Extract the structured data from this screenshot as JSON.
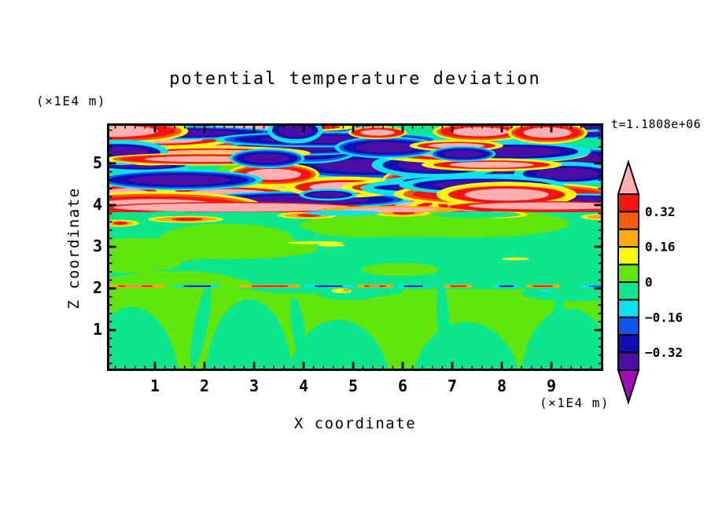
{
  "chart_data": {
    "type": "heatmap",
    "subtype": "filled-contour",
    "title": "potential temperature deviation",
    "xlabel": "X coordinate",
    "ylabel": "Z coordinate",
    "x_unit_label": "(×1E4 m)",
    "y_unit_label": "(×1E4 m)",
    "time_label": "t=1.1808e+06",
    "xlim": [
      0,
      10
    ],
    "zlim": [
      0,
      5.95
    ],
    "x_major_ticks": [
      1,
      2,
      3,
      4,
      5,
      6,
      7,
      8,
      9
    ],
    "z_major_ticks": [
      1,
      2,
      3,
      4,
      5
    ],
    "minor_tick_step": 0.2,
    "grid": false,
    "colorbar": {
      "labels": [
        "0.32",
        "0.16",
        "0",
        "−0.16",
        "−0.32"
      ],
      "level_boundaries": [
        0.4,
        0.32,
        0.24,
        0.16,
        0.08,
        0,
        -0.08,
        -0.16,
        -0.24,
        -0.32,
        -0.4
      ],
      "cell_colors_top_to_bottom": [
        "#FB1310",
        "#F85C0B",
        "#FCA90A",
        "#FEFB06",
        "#60E60D",
        "#0BE78E",
        "#0CE2EF",
        "#0D55F2",
        "#140EB2",
        "#4A0EA6"
      ],
      "over_color": "#FFAFB0",
      "under_color": "#9E10B5",
      "position": "right"
    },
    "palette": {
      "pink": "#FFAFB0",
      "red": "#FB1310",
      "orangered": "#F85C0B",
      "orange": "#FCA90A",
      "yellow": "#FEFB06",
      "chartreuse": "#60E60D",
      "spring": "#0BE78E",
      "cyan": "#0CE2EF",
      "blue": "#0D55F2",
      "navy": "#140EB2",
      "violet": "#4A0EA6",
      "purple": "#9E10B5"
    },
    "features": {
      "upper_turbulent_layer": {
        "z_range": [
          3.85,
          5.95
        ],
        "description": "chaotic elongated horizontal streaks alternating warm (pink core rimmed by red/orange/yellow) and cool (dark violet core rimmed by navy/blue/cyan) over green"
      },
      "mixed_layer": {
        "z_range": [
          2.1,
          3.85
        ],
        "description": "mostly uniform green (values near 0) with chartreuse patches and a few small warm lenses just below the turbulent layer"
      },
      "inversion_line": {
        "z": 2.05,
        "description": "thin horizontal line of alternating warm (yellow/orange/red/pink) and cool (cyan/blue/navy) segments spanning the full width"
      },
      "convective_layer": {
        "z_range": [
          0,
          2.0
        ],
        "description": "chartreuse background with large green dome-shaped plumes rising from the bottom"
      }
    }
  }
}
